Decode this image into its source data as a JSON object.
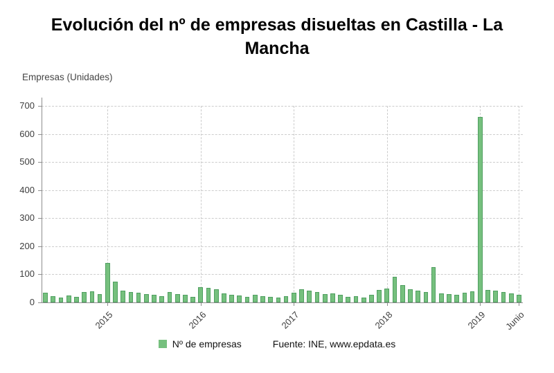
{
  "legend": {
    "series_label": "Nº de empresas",
    "source": "Fuente: INE, www.epdata.es"
  },
  "colors": {
    "bar_fill": "#76c07e",
    "bar_border": "#4f9f60",
    "grid": "#cccccc",
    "axis": "#8c8c8c",
    "tick_text": "#3d3d3d"
  },
  "chart_data": {
    "type": "bar",
    "title": "Evolución del nº de empresas disueltas en Castilla - La Mancha",
    "ylabel": "Empresas (Unidades)",
    "ylim": [
      0,
      700
    ],
    "yticks": [
      0,
      100,
      200,
      300,
      400,
      500,
      600,
      700
    ],
    "x_start_month": "2014-05",
    "x_end_month": "2019-06",
    "values": [
      35,
      22,
      18,
      25,
      20,
      38,
      40,
      30,
      140,
      74,
      42,
      38,
      35,
      30,
      28,
      22,
      36,
      30,
      28,
      20,
      55,
      52,
      46,
      32,
      28,
      25,
      20,
      26,
      22,
      20,
      18,
      22,
      35,
      46,
      42,
      38,
      30,
      32,
      28,
      20,
      22,
      18,
      26,
      45,
      50,
      90,
      62,
      48,
      42,
      38,
      125,
      32,
      30,
      28,
      35,
      40,
      661,
      45,
      42,
      38,
      32,
      28
    ],
    "xticks": [
      {
        "label": "2015",
        "month_index": 8
      },
      {
        "label": "2016",
        "month_index": 20
      },
      {
        "label": "2017",
        "month_index": 32
      },
      {
        "label": "2018",
        "month_index": 44
      },
      {
        "label": "2019",
        "month_index": 56
      },
      {
        "label": "Junio",
        "month_index": 61
      }
    ],
    "grid": "dashed",
    "legend_position": "bottom"
  }
}
